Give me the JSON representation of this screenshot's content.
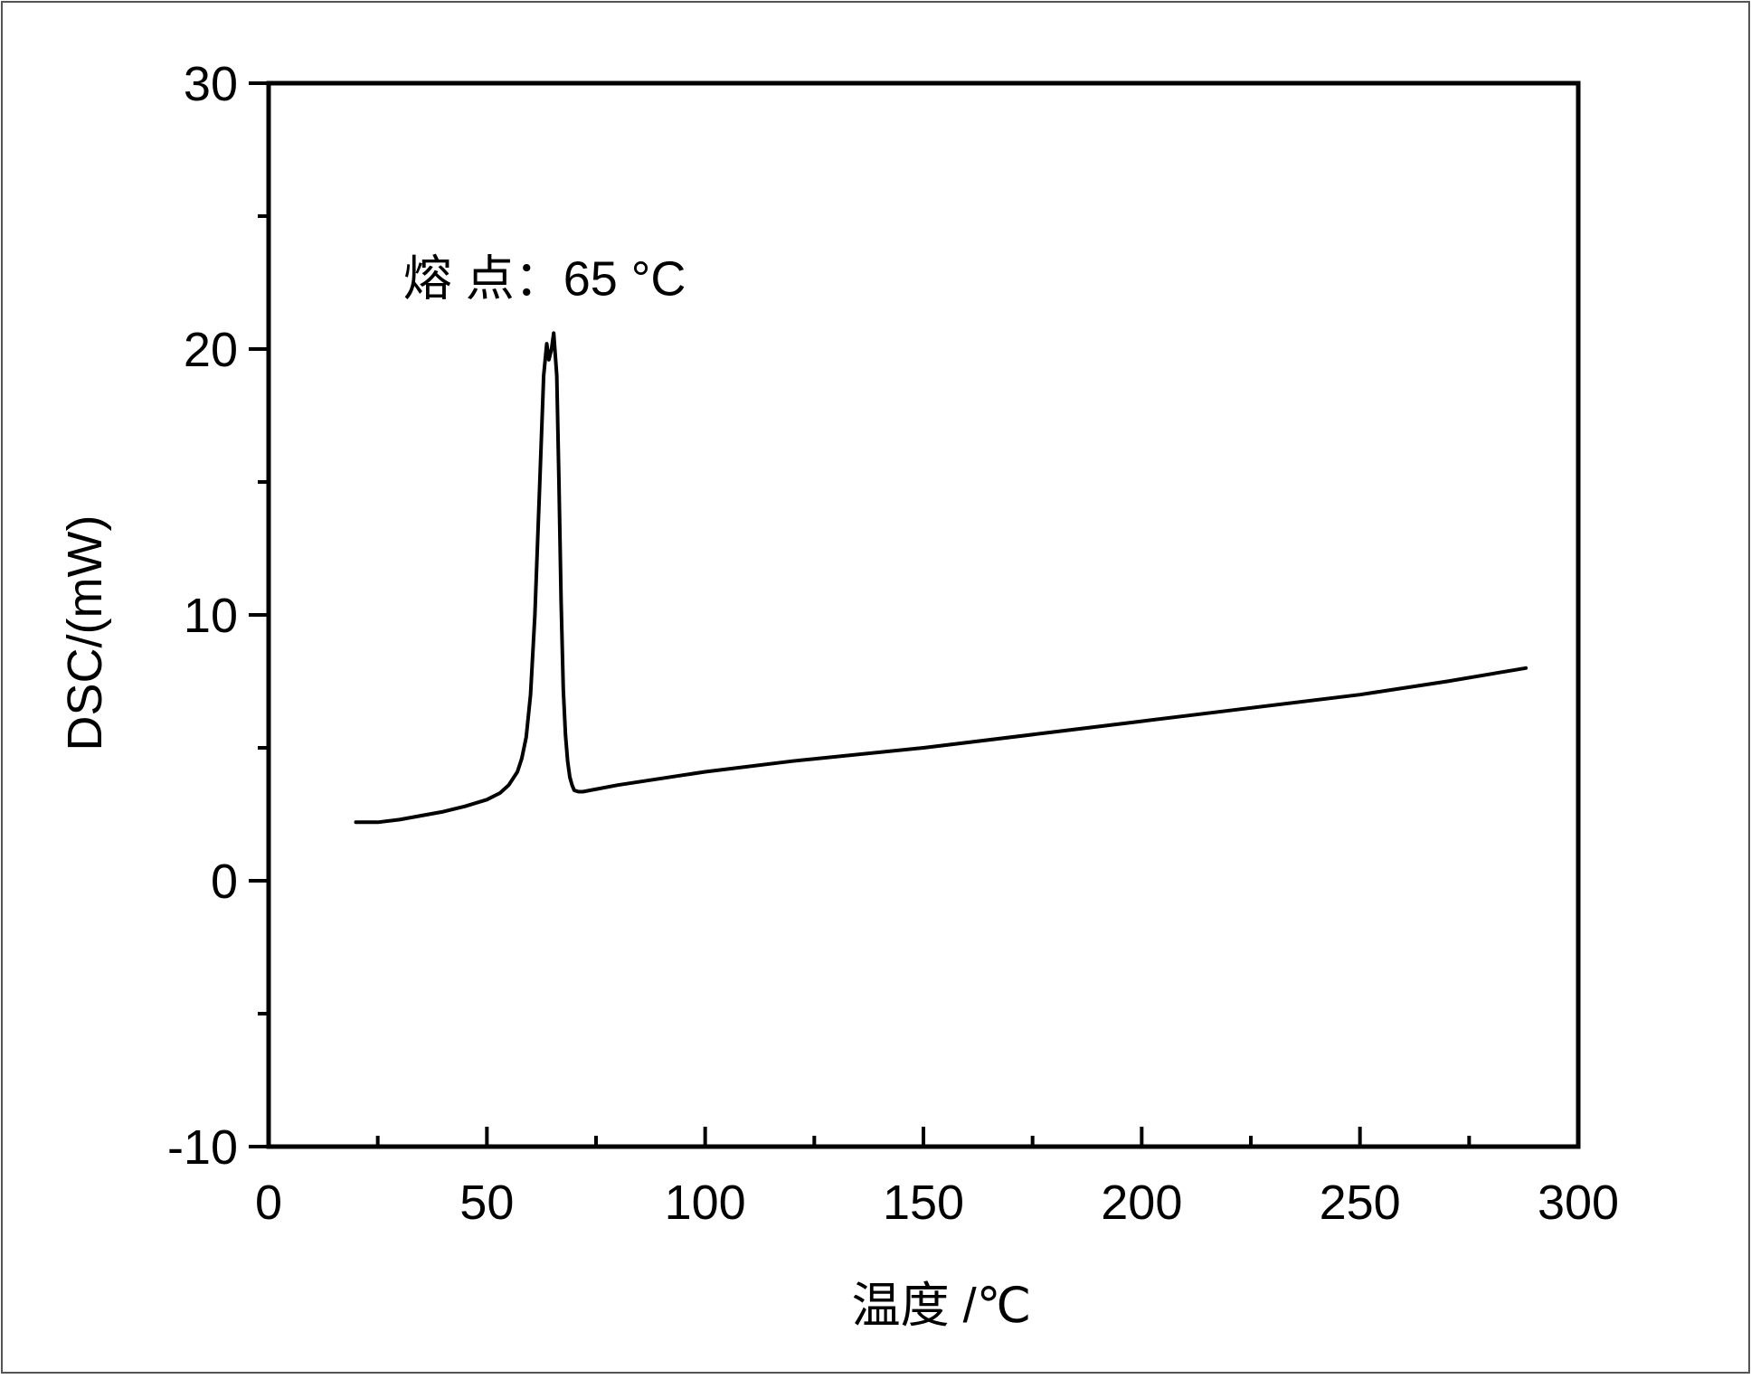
{
  "chart_data": {
    "type": "line",
    "title": "",
    "xlabel": "温度 /℃",
    "ylabel": "DSC/(mW)",
    "xlim": [
      0,
      300
    ],
    "ylim": [
      -10,
      30
    ],
    "xticks": [
      0,
      50,
      100,
      150,
      200,
      250,
      300
    ],
    "yticks": [
      -10,
      0,
      10,
      20,
      30
    ],
    "xtick_labels": [
      "0",
      "50",
      "100",
      "150",
      "200",
      "250",
      "300"
    ],
    "ytick_labels": [
      "-10",
      "0",
      "10",
      "20",
      "30"
    ],
    "grid": false,
    "legend": "none",
    "annotation": {
      "text": "熔 点：65 °C",
      "x": 65,
      "y": 20.6
    },
    "series": [
      {
        "color": "#000000",
        "x": [
          20,
          25,
          30,
          35,
          40,
          45,
          50,
          53,
          55,
          57,
          58,
          59,
          60,
          61,
          62,
          63,
          63.7,
          64.2,
          64.8,
          65.3,
          66,
          66.5,
          67,
          67.5,
          68,
          68.5,
          69,
          69.5,
          70,
          71,
          72,
          80,
          90,
          100,
          120,
          150,
          180,
          200,
          220,
          250,
          270,
          288
        ],
        "y": [
          2.2,
          2.2,
          2.3,
          2.45,
          2.6,
          2.8,
          3.05,
          3.3,
          3.6,
          4.1,
          4.6,
          5.4,
          7.0,
          10.0,
          14.5,
          19.0,
          20.2,
          19.6,
          20.0,
          20.6,
          19.0,
          15.0,
          10.5,
          7.2,
          5.5,
          4.5,
          3.9,
          3.6,
          3.4,
          3.35,
          3.35,
          3.6,
          3.85,
          4.1,
          4.5,
          5.0,
          5.6,
          6.0,
          6.4,
          7.0,
          7.5,
          8.0
        ]
      }
    ]
  }
}
